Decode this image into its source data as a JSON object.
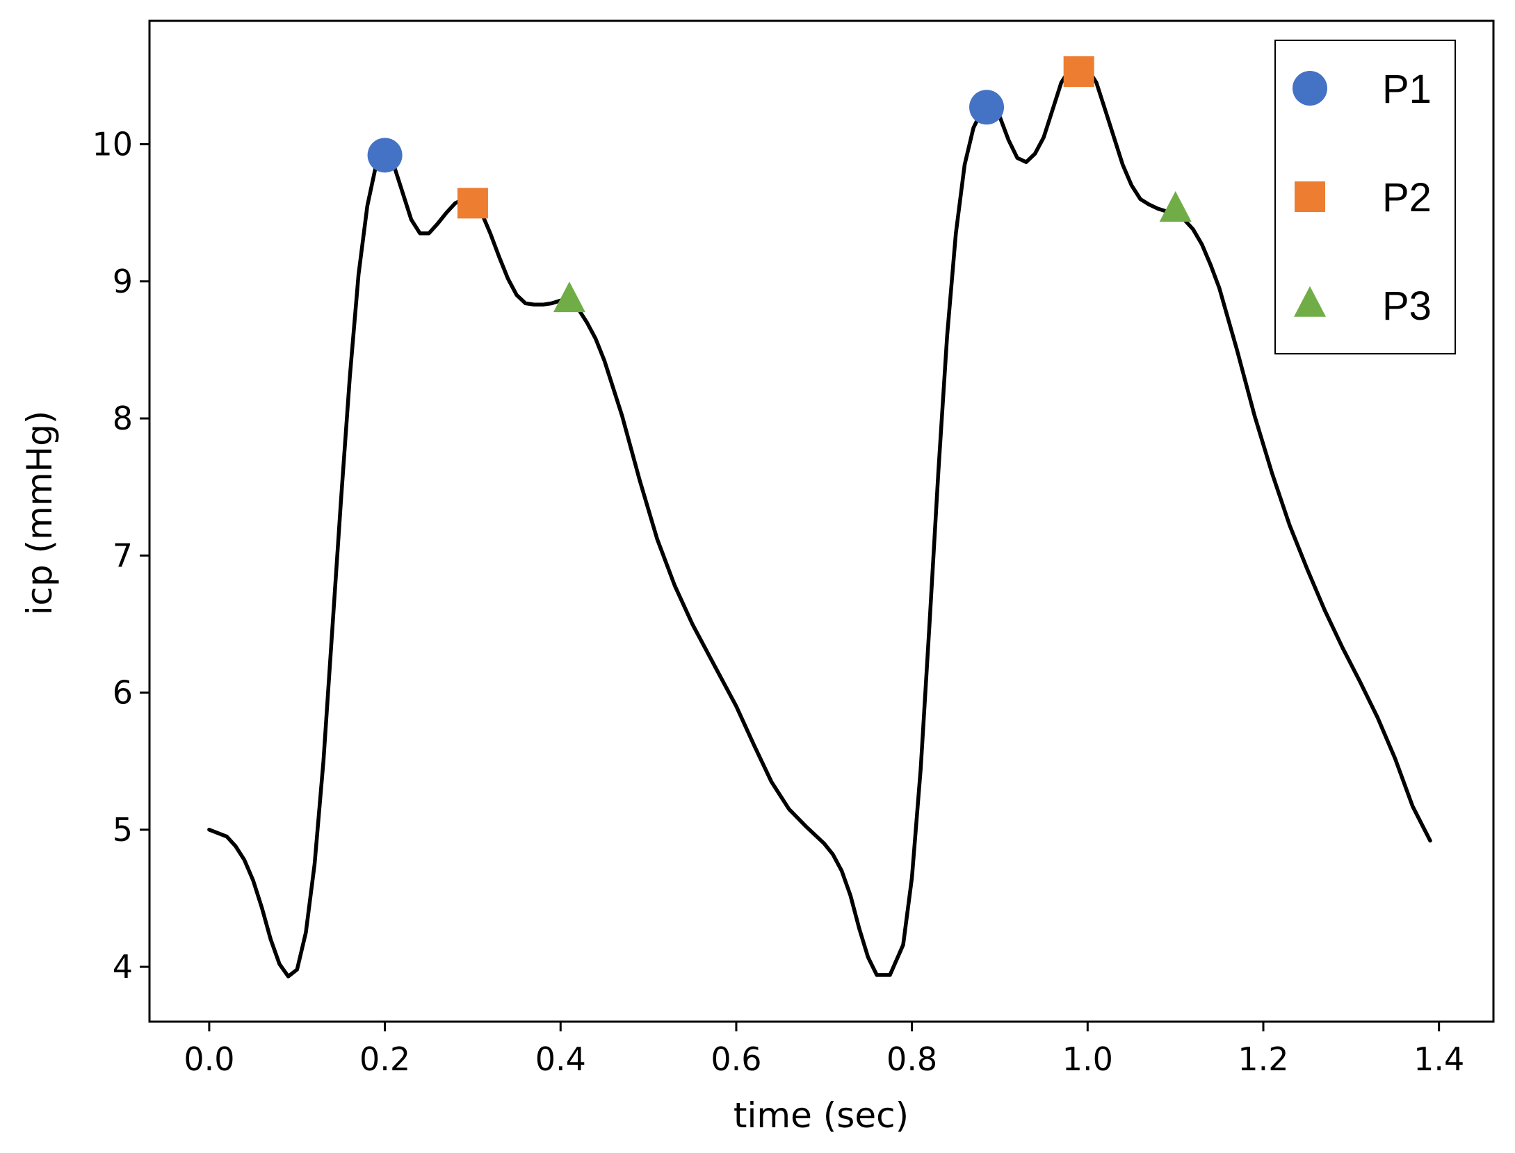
{
  "chart_data": {
    "type": "line",
    "xlabel": "time (sec)",
    "ylabel": "icp (mmHg)",
    "xlim": [
      -0.068,
      1.462
    ],
    "ylim": [
      3.6,
      10.9
    ],
    "xticks": [
      0.0,
      0.2,
      0.4,
      0.6,
      0.8,
      1.0,
      1.2,
      1.4
    ],
    "xtick_labels": [
      "0.0",
      "0.2",
      "0.4",
      "0.6",
      "0.8",
      "1.0",
      "1.2",
      "1.4"
    ],
    "yticks": [
      4,
      5,
      6,
      7,
      8,
      9,
      10
    ],
    "ytick_labels": [
      "4",
      "5",
      "6",
      "7",
      "8",
      "9",
      "10"
    ],
    "grid": false,
    "legend_position": "top-right",
    "series": [
      {
        "color": "#000000",
        "x": [
          0.0,
          0.02,
          0.03,
          0.04,
          0.05,
          0.06,
          0.07,
          0.08,
          0.09,
          0.1,
          0.11,
          0.12,
          0.13,
          0.14,
          0.15,
          0.16,
          0.17,
          0.18,
          0.19,
          0.2,
          0.21,
          0.22,
          0.23,
          0.24,
          0.25,
          0.26,
          0.27,
          0.28,
          0.29,
          0.3,
          0.31,
          0.32,
          0.33,
          0.34,
          0.35,
          0.36,
          0.37,
          0.38,
          0.39,
          0.4,
          0.41,
          0.42,
          0.43,
          0.44,
          0.45,
          0.47,
          0.49,
          0.51,
          0.53,
          0.55,
          0.57,
          0.6,
          0.62,
          0.64,
          0.66,
          0.68,
          0.7,
          0.71,
          0.72,
          0.73,
          0.74,
          0.75,
          0.76,
          0.775,
          0.79,
          0.8,
          0.81,
          0.82,
          0.83,
          0.84,
          0.85,
          0.86,
          0.87,
          0.88,
          0.89,
          0.9,
          0.91,
          0.92,
          0.93,
          0.94,
          0.95,
          0.96,
          0.97,
          0.98,
          0.99,
          1.0,
          1.01,
          1.02,
          1.03,
          1.04,
          1.05,
          1.06,
          1.07,
          1.08,
          1.09,
          1.1,
          1.11,
          1.12,
          1.13,
          1.14,
          1.15,
          1.17,
          1.19,
          1.21,
          1.23,
          1.25,
          1.27,
          1.29,
          1.31,
          1.33,
          1.35,
          1.37,
          1.39
        ],
        "y": [
          5.0,
          4.95,
          4.88,
          4.78,
          4.63,
          4.43,
          4.2,
          4.02,
          3.93,
          3.98,
          4.25,
          4.75,
          5.5,
          6.45,
          7.4,
          8.3,
          9.05,
          9.55,
          9.85,
          9.92,
          9.85,
          9.65,
          9.45,
          9.35,
          9.35,
          9.42,
          9.5,
          9.57,
          9.6,
          9.6,
          9.5,
          9.35,
          9.18,
          9.02,
          8.9,
          8.84,
          8.83,
          8.83,
          8.84,
          8.86,
          8.86,
          8.8,
          8.7,
          8.58,
          8.42,
          8.02,
          7.55,
          7.12,
          6.78,
          6.5,
          6.26,
          5.9,
          5.62,
          5.35,
          5.15,
          5.02,
          4.9,
          4.82,
          4.7,
          4.52,
          4.28,
          4.07,
          3.94,
          3.94,
          4.16,
          4.65,
          5.45,
          6.5,
          7.6,
          8.6,
          9.35,
          9.85,
          10.12,
          10.25,
          10.26,
          10.2,
          10.03,
          9.9,
          9.87,
          9.93,
          10.05,
          10.25,
          10.45,
          10.55,
          10.56,
          10.55,
          10.45,
          10.25,
          10.05,
          9.85,
          9.7,
          9.6,
          9.56,
          9.53,
          9.51,
          9.5,
          9.45,
          9.38,
          9.27,
          9.12,
          8.95,
          8.5,
          8.02,
          7.6,
          7.22,
          6.9,
          6.6,
          6.33,
          6.08,
          5.82,
          5.52,
          5.17,
          4.92
        ]
      }
    ],
    "markers": [
      {
        "name": "P1",
        "shape": "circle",
        "color": "#4472C4",
        "points": [
          {
            "x": 0.2,
            "y": 9.92
          },
          {
            "x": 0.885,
            "y": 10.27
          }
        ]
      },
      {
        "name": "P2",
        "shape": "square",
        "color": "#ED7D31",
        "points": [
          {
            "x": 0.3,
            "y": 9.57
          },
          {
            "x": 0.99,
            "y": 10.53
          }
        ]
      },
      {
        "name": "P3",
        "shape": "triangle",
        "color": "#70AD47",
        "points": [
          {
            "x": 0.41,
            "y": 8.86
          },
          {
            "x": 1.1,
            "y": 9.52
          }
        ]
      }
    ]
  }
}
